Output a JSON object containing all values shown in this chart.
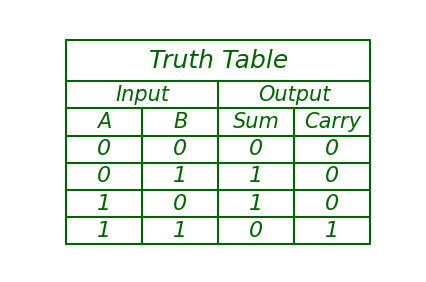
{
  "title": "Truth Table",
  "col_headers_row1": [
    "Input",
    "Output"
  ],
  "col_headers_row2": [
    "A",
    "B",
    "Sum",
    "Carry"
  ],
  "data_rows": [
    [
      "0",
      "0",
      "0",
      "0"
    ],
    [
      "0",
      "1",
      "1",
      "0"
    ],
    [
      "1",
      "0",
      "1",
      "0"
    ],
    [
      "1",
      "1",
      "0",
      "1"
    ]
  ],
  "text_color": "#006400",
  "line_color": "#006400",
  "bg_color": "#ffffff",
  "title_fontsize": 18,
  "header_fontsize": 15,
  "data_fontsize": 16
}
